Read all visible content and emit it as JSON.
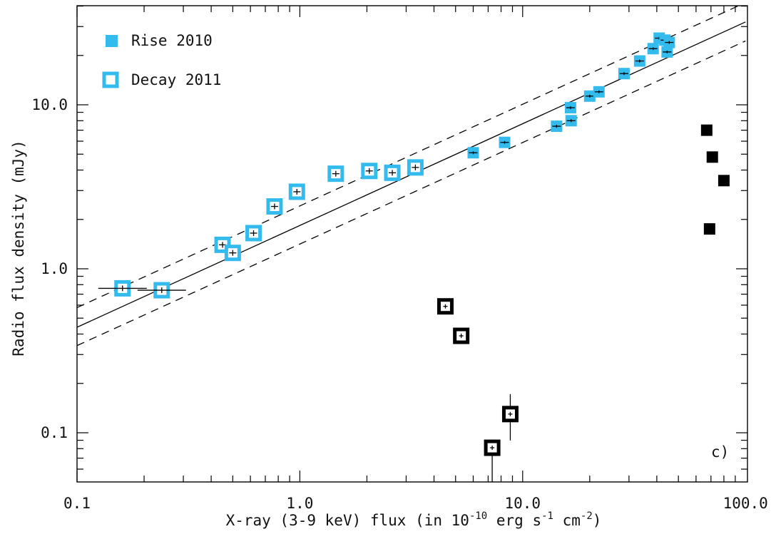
{
  "chart_data": {
    "type": "scatter",
    "panel_label": "c)",
    "xlabel": {
      "pre": "X-ray (3-9 keV) flux (in 10",
      "exp1": "-10",
      "mid": " erg s",
      "exp2": "-1",
      "mid2": " cm",
      "exp3": "-2",
      "post": ")"
    },
    "ylabel": "Radio flux density (mJy)",
    "x_scale": "log",
    "y_scale": "log",
    "xlim": [
      0.1,
      100.0
    ],
    "ylim": [
      0.05,
      45
    ],
    "x_ticks": [
      {
        "value": 0.1,
        "label": "0.1"
      },
      {
        "value": 1.0,
        "label": "1.0"
      },
      {
        "value": 10.0,
        "label": "10.0"
      },
      {
        "value": 100.0,
        "label": "100.0"
      }
    ],
    "y_ticks": [
      {
        "value": 0.1,
        "label": "0.1"
      },
      {
        "value": 1.0,
        "label": "1.0"
      },
      {
        "value": 10.0,
        "label": "10.0"
      }
    ],
    "grid": false,
    "legend_position": "top-left",
    "colors": {
      "rise": "#33bbee",
      "decay": "#33bbee",
      "outlier": "#000000",
      "line": "#000000"
    },
    "series": [
      {
        "name": "Rise 2010",
        "marker": "filled-square",
        "points": [
          {
            "x": 6.0,
            "y": 5.1
          },
          {
            "x": 8.3,
            "y": 5.9
          },
          {
            "x": 14.2,
            "y": 7.4
          },
          {
            "x": 16.5,
            "y": 8.0
          },
          {
            "x": 16.4,
            "y": 9.6
          },
          {
            "x": 20.0,
            "y": 11.3
          },
          {
            "x": 22.0,
            "y": 12.0
          },
          {
            "x": 28.5,
            "y": 15.5
          },
          {
            "x": 33.5,
            "y": 18.5
          },
          {
            "x": 38.5,
            "y": 22.0
          },
          {
            "x": 41.0,
            "y": 25.5
          },
          {
            "x": 43.5,
            "y": 24.8
          },
          {
            "x": 45.5,
            "y": 24.0
          },
          {
            "x": 44.5,
            "y": 21.0
          }
        ]
      },
      {
        "name": "Decay 2011",
        "marker": "open-square",
        "points": [
          {
            "x": 0.16,
            "y": 0.76
          },
          {
            "x": 0.24,
            "y": 0.74
          },
          {
            "x": 0.45,
            "y": 1.4
          },
          {
            "x": 0.5,
            "y": 1.25
          },
          {
            "x": 0.62,
            "y": 1.65
          },
          {
            "x": 0.77,
            "y": 2.4
          },
          {
            "x": 0.97,
            "y": 2.95
          },
          {
            "x": 1.45,
            "y": 3.8
          },
          {
            "x": 2.05,
            "y": 3.95
          },
          {
            "x": 2.6,
            "y": 3.85
          },
          {
            "x": 3.3,
            "y": 4.15
          }
        ]
      },
      {
        "marker": "filled-square-black",
        "points": [
          {
            "x": 67.0,
            "y": 7.0
          },
          {
            "x": 71.0,
            "y": 4.8
          },
          {
            "x": 80.0,
            "y": 3.45
          },
          {
            "x": 69.0,
            "y": 1.75
          }
        ]
      },
      {
        "marker": "open-square-black",
        "points": [
          {
            "x": 4.5,
            "y": 0.59
          },
          {
            "x": 5.3,
            "y": 0.39
          },
          {
            "x": 7.3,
            "y": 0.081
          },
          {
            "x": 8.8,
            "y": 0.13
          }
        ]
      }
    ],
    "fit_lines": [
      {
        "style": "solid",
        "points": [
          [
            0.1,
            0.44
          ],
          [
            100.0,
            32.0
          ]
        ]
      },
      {
        "style": "dashed",
        "points": [
          [
            0.1,
            0.58
          ],
          [
            100.0,
            42.0
          ]
        ]
      },
      {
        "style": "dashed",
        "points": [
          [
            0.1,
            0.34
          ],
          [
            100.0,
            24.5
          ]
        ]
      }
    ]
  }
}
